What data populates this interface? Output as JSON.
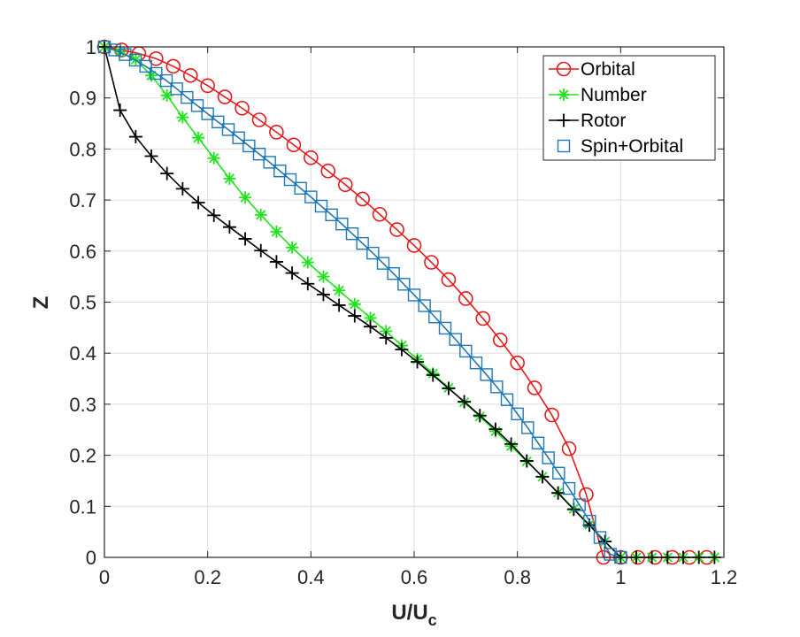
{
  "chart_data": {
    "type": "line",
    "title": "",
    "xlabel": "U/U",
    "xlabel_subscript": "c",
    "ylabel": "Z",
    "xlim": [
      0,
      1.2
    ],
    "ylim": [
      0,
      1
    ],
    "xticks": [
      0,
      0.2,
      0.4,
      0.6,
      0.8,
      1,
      1.2
    ],
    "xtick_labels": [
      "0",
      "0.2",
      "0.4",
      "0.6",
      "0.8",
      "1",
      "1.2"
    ],
    "yticks": [
      0,
      0.1,
      0.2,
      0.3,
      0.4,
      0.5,
      0.6,
      0.7,
      0.8,
      0.9,
      1
    ],
    "ytick_labels": [
      "0",
      "0.1",
      "0.2",
      "0.3",
      "0.4",
      "0.5",
      "0.6",
      "0.7",
      "0.8",
      "0.9",
      "1"
    ],
    "grid": true,
    "legend_position": "top-right",
    "series": [
      {
        "name": "Orbital",
        "color": "#e31a1c",
        "marker": "circle",
        "x": [
          0,
          0.0333,
          0.0667,
          0.1,
          0.1333,
          0.1667,
          0.2,
          0.2333,
          0.2667,
          0.3,
          0.3333,
          0.3667,
          0.4,
          0.4333,
          0.4667,
          0.5,
          0.5333,
          0.5667,
          0.6,
          0.6333,
          0.6667,
          0.7,
          0.7333,
          0.7667,
          0.8,
          0.8333,
          0.8667,
          0.9,
          0.9333,
          0.9667,
          1.0,
          1.0333,
          1.0667,
          1.1,
          1.1333,
          1.1667
        ],
        "y": [
          1,
          0.994,
          0.987,
          0.977,
          0.962,
          0.944,
          0.924,
          0.902,
          0.88,
          0.857,
          0.833,
          0.808,
          0.783,
          0.757,
          0.73,
          0.702,
          0.672,
          0.642,
          0.611,
          0.578,
          0.544,
          0.507,
          0.468,
          0.426,
          0.381,
          0.332,
          0.279,
          0.213,
          0.123,
          0,
          0,
          0,
          0,
          0,
          0,
          0
        ]
      },
      {
        "name": "Number",
        "color": "#22e31e",
        "marker": "asterisk",
        "x": [
          0,
          0.0303,
          0.0606,
          0.0909,
          0.1212,
          0.1515,
          0.1818,
          0.2121,
          0.2424,
          0.2727,
          0.303,
          0.3333,
          0.3636,
          0.3939,
          0.4242,
          0.4545,
          0.4848,
          0.5152,
          0.5455,
          0.5758,
          0.6061,
          0.6364,
          0.6667,
          0.697,
          0.7273,
          0.7576,
          0.7879,
          0.8182,
          0.8485,
          0.8788,
          0.9091,
          0.9394,
          0.9697,
          1.0,
          1.0303,
          1.0606,
          1.0909,
          1.1212,
          1.1515,
          1.1818
        ],
        "y": [
          1,
          0.99,
          0.975,
          0.944,
          0.905,
          0.862,
          0.822,
          0.782,
          0.742,
          0.705,
          0.671,
          0.638,
          0.607,
          0.578,
          0.55,
          0.523,
          0.496,
          0.469,
          0.443,
          0.415,
          0.388,
          0.36,
          0.332,
          0.304,
          0.276,
          0.247,
          0.218,
          0.188,
          0.158,
          0.127,
          0.095,
          0.064,
          0.031,
          0,
          0,
          0,
          0,
          0,
          0,
          0
        ]
      },
      {
        "name": "Rotor",
        "color": "#000000",
        "marker": "plus",
        "x": [
          0,
          0.0303,
          0.0606,
          0.0909,
          0.1212,
          0.1515,
          0.1818,
          0.2121,
          0.2424,
          0.2727,
          0.303,
          0.3333,
          0.3636,
          0.3939,
          0.4242,
          0.4545,
          0.4848,
          0.5152,
          0.5455,
          0.5758,
          0.6061,
          0.6364,
          0.6667,
          0.697,
          0.7273,
          0.7576,
          0.7879,
          0.8182,
          0.8485,
          0.8788,
          0.9091,
          0.9394,
          0.9697,
          1.0,
          1.0303,
          1.0606,
          1.0909,
          1.1212,
          1.1515,
          1.1818
        ],
        "y": [
          1,
          0.876,
          0.824,
          0.786,
          0.752,
          0.722,
          0.695,
          0.67,
          0.647,
          0.624,
          0.601,
          0.579,
          0.557,
          0.536,
          0.515,
          0.494,
          0.473,
          0.452,
          0.43,
          0.407,
          0.383,
          0.357,
          0.331,
          0.305,
          0.278,
          0.251,
          0.222,
          0.189,
          0.158,
          0.126,
          0.094,
          0.063,
          0.031,
          0,
          0,
          0,
          0,
          0,
          0,
          0
        ]
      },
      {
        "name": "Spin+Orbital",
        "color": "#1f78b4",
        "marker": "square",
        "x": [
          0,
          0.02,
          0.04,
          0.06,
          0.08,
          0.1,
          0.12,
          0.14,
          0.16,
          0.18,
          0.2,
          0.22,
          0.24,
          0.26,
          0.28,
          0.3,
          0.32,
          0.34,
          0.36,
          0.38,
          0.4,
          0.42,
          0.44,
          0.46,
          0.48,
          0.5,
          0.52,
          0.54,
          0.56,
          0.58,
          0.6,
          0.62,
          0.64,
          0.66,
          0.68,
          0.7,
          0.72,
          0.74,
          0.76,
          0.78,
          0.8,
          0.82,
          0.84,
          0.86,
          0.88,
          0.9,
          0.92,
          0.94,
          0.96,
          0.98,
          1.0
        ],
        "y": [
          1,
          0.994,
          0.985,
          0.974,
          0.962,
          0.948,
          0.934,
          0.918,
          0.901,
          0.885,
          0.869,
          0.853,
          0.838,
          0.822,
          0.806,
          0.79,
          0.774,
          0.757,
          0.74,
          0.723,
          0.706,
          0.688,
          0.671,
          0.653,
          0.634,
          0.615,
          0.596,
          0.576,
          0.556,
          0.535,
          0.514,
          0.493,
          0.471,
          0.449,
          0.427,
          0.404,
          0.381,
          0.358,
          0.334,
          0.309,
          0.281,
          0.254,
          0.224,
          0.195,
          0.165,
          0.135,
          0.103,
          0.071,
          0.039,
          0.006,
          0
        ]
      }
    ]
  }
}
